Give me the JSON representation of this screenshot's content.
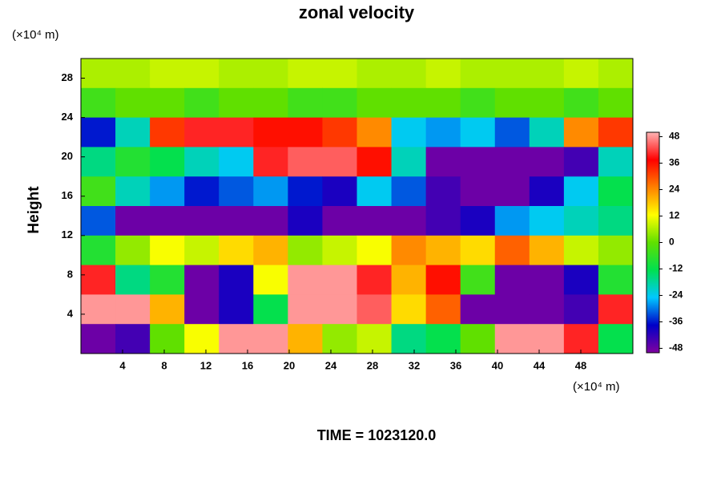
{
  "chart_data": {
    "type": "contour",
    "title": "zonal velocity",
    "y_unit_label": "(×10⁴ m)",
    "x_unit_label": "(×10⁴ m)",
    "ylabel": "Height",
    "annotation": "TIME = 1023120.0",
    "xlim": [
      0,
      53
    ],
    "ylim": [
      0,
      30
    ],
    "xticks": [
      4,
      8,
      12,
      16,
      20,
      24,
      28,
      32,
      36,
      40,
      44,
      48
    ],
    "yticks": [
      4,
      8,
      12,
      16,
      20,
      24,
      28
    ],
    "clim": [
      -50,
      50
    ],
    "cticks": [
      -48,
      -36,
      -24,
      -12,
      0,
      12,
      24,
      36,
      48
    ],
    "colormap": [
      "#8000a0",
      "#0000c8",
      "#00c8ff",
      "#00e050",
      "#60e000",
      "#ffff00",
      "#ff8000",
      "#ff0000",
      "#ffb4b4"
    ],
    "z": [
      [
        6,
        6,
        8,
        8,
        6,
        6,
        8,
        8,
        6,
        6,
        8,
        6,
        6,
        6,
        8,
        6
      ],
      [
        -4,
        0,
        0,
        -4,
        0,
        0,
        -4,
        -4,
        0,
        0,
        0,
        -4,
        0,
        0,
        -4,
        0
      ],
      [
        -36,
        -20,
        32,
        40,
        40,
        36,
        36,
        32,
        24,
        -24,
        -28,
        -24,
        -32,
        -20,
        24,
        32
      ],
      [
        -16,
        -8,
        -12,
        -20,
        -24,
        40,
        44,
        44,
        36,
        -20,
        -48,
        -48,
        -48,
        -48,
        -44,
        -20
      ],
      [
        -4,
        -20,
        -28,
        -36,
        -32,
        -28,
        -36,
        -40,
        -24,
        -32,
        -44,
        -48,
        -48,
        -40,
        -24,
        -12
      ],
      [
        -32,
        -48,
        -48,
        -48,
        -48,
        -48,
        -40,
        -48,
        -48,
        -48,
        -44,
        -40,
        -28,
        -24,
        -20,
        -16
      ],
      [
        -8,
        4,
        12,
        8,
        16,
        20,
        4,
        8,
        12,
        24,
        20,
        16,
        28,
        20,
        8,
        4
      ],
      [
        40,
        -16,
        -8,
        -48,
        -40,
        12,
        48,
        48,
        40,
        20,
        36,
        -4,
        -48,
        -48,
        -40,
        -8
      ],
      [
        48,
        48,
        20,
        -48,
        -40,
        -12,
        48,
        48,
        44,
        16,
        28,
        -48,
        -48,
        -48,
        -44,
        40
      ],
      [
        -48,
        -44,
        0,
        12,
        48,
        48,
        20,
        4,
        8,
        -16,
        -12,
        0,
        48,
        48,
        40,
        -12
      ]
    ]
  }
}
